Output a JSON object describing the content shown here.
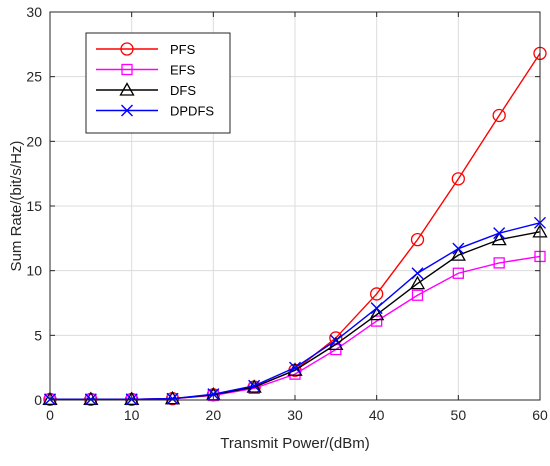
{
  "chart_data": {
    "type": "line",
    "title": "",
    "xlabel": "Transmit Power/(dBm)",
    "ylabel": "Sum Rate/(bit/s/Hz)",
    "x": [
      0,
      5,
      10,
      15,
      20,
      25,
      30,
      35,
      40,
      45,
      50,
      55,
      60
    ],
    "xlim": [
      0,
      60
    ],
    "ylim": [
      0,
      30
    ],
    "xticks": [
      0,
      10,
      20,
      30,
      40,
      50,
      60
    ],
    "yticks": [
      0,
      5,
      10,
      15,
      20,
      25,
      30
    ],
    "grid": true,
    "legend_position": "top-left",
    "series": [
      {
        "name": "PFS",
        "color": "#ff0000",
        "marker": "circle",
        "values": [
          0.05,
          0.05,
          0.05,
          0.1,
          0.4,
          1.0,
          2.3,
          4.8,
          8.2,
          12.4,
          17.1,
          22.0,
          26.8
        ]
      },
      {
        "name": "EFS",
        "color": "#ff00ff",
        "marker": "square",
        "values": [
          0.05,
          0.05,
          0.05,
          0.1,
          0.35,
          0.9,
          2.0,
          3.9,
          6.1,
          8.1,
          9.8,
          10.6,
          11.1
        ]
      },
      {
        "name": "DFS",
        "color": "#000000",
        "marker": "triangle",
        "values": [
          0.05,
          0.05,
          0.05,
          0.1,
          0.4,
          1.0,
          2.3,
          4.3,
          6.6,
          9.0,
          11.2,
          12.4,
          13.0
        ]
      },
      {
        "name": "DPDFS",
        "color": "#0000ff",
        "marker": "x",
        "values": [
          0.05,
          0.05,
          0.05,
          0.1,
          0.45,
          1.1,
          2.5,
          4.6,
          7.1,
          9.8,
          11.7,
          12.9,
          13.7
        ]
      }
    ]
  }
}
